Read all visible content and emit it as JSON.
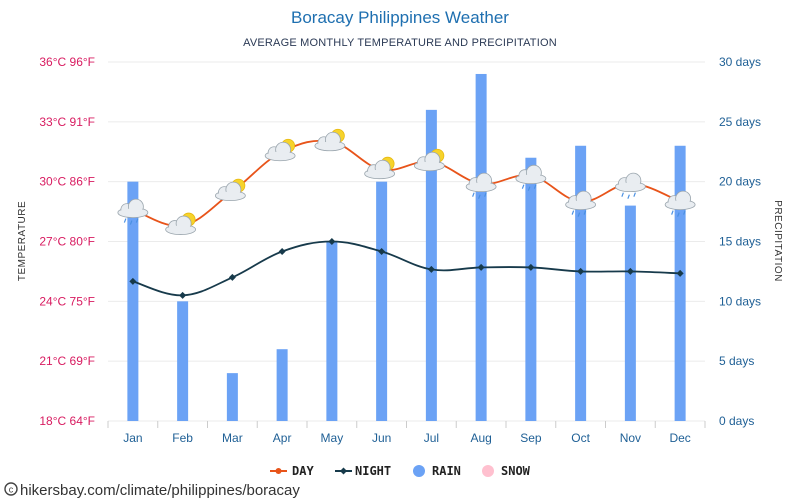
{
  "chart_data": {
    "type": "bar",
    "title": "Boracay Philippines Weather",
    "subtitle": "AVERAGE MONTHLY TEMPERATURE AND PRECIPITATION",
    "categories": [
      "Jan",
      "Feb",
      "Mar",
      "Apr",
      "May",
      "Jun",
      "Jul",
      "Aug",
      "Sep",
      "Oct",
      "Nov",
      "Dec"
    ],
    "left_axis": {
      "label": "TEMPERATURE",
      "unit": "°C",
      "ylim": [
        18,
        36
      ],
      "ticks": [
        "18°C 64°F",
        "21°C 69°F",
        "24°C 75°F",
        "27°C 80°F",
        "30°C 86°F",
        "33°C 91°F",
        "36°C 96°F"
      ]
    },
    "right_axis": {
      "label": "PRECIPITATION",
      "unit": "days",
      "ylim": [
        0,
        30
      ],
      "ticks": [
        "0 days",
        "5 days",
        "10 days",
        "15 days",
        "20 days",
        "25 days",
        "30 days"
      ]
    },
    "grid": true,
    "series": [
      {
        "name": "DAY",
        "type": "line",
        "axis": "left",
        "color": "#e8541a",
        "values": [
          28.6,
          27.8,
          29.5,
          31.5,
          32.0,
          30.6,
          31.0,
          29.9,
          30.3,
          29.0,
          29.9,
          29.0
        ],
        "weather_icons": [
          "rain",
          "partly-sunny",
          "partly-sunny",
          "partly-sunny",
          "partly-sunny",
          "partly-sunny",
          "partly-sunny",
          "rain",
          "rain",
          "rain",
          "rain",
          "rain"
        ]
      },
      {
        "name": "NIGHT",
        "type": "line",
        "axis": "left",
        "color": "#173a4b",
        "values": [
          25.0,
          24.3,
          25.2,
          26.5,
          27.0,
          26.5,
          25.6,
          25.7,
          25.7,
          25.5,
          25.5,
          25.4
        ]
      },
      {
        "name": "RAIN",
        "type": "bar",
        "axis": "right",
        "color": "#6ba2f5",
        "unit": "days",
        "values": [
          20,
          10,
          4,
          6,
          15,
          20,
          26,
          29,
          22,
          23,
          18,
          23
        ]
      },
      {
        "name": "SNOW",
        "type": "bar",
        "axis": "right",
        "color": "#ffc0cf",
        "unit": "days",
        "values": [
          0,
          0,
          0,
          0,
          0,
          0,
          0,
          0,
          0,
          0,
          0,
          0
        ]
      }
    ],
    "legend_position": "bottom-center"
  },
  "source": "hikersbay.com/climate/philippines/boracay"
}
